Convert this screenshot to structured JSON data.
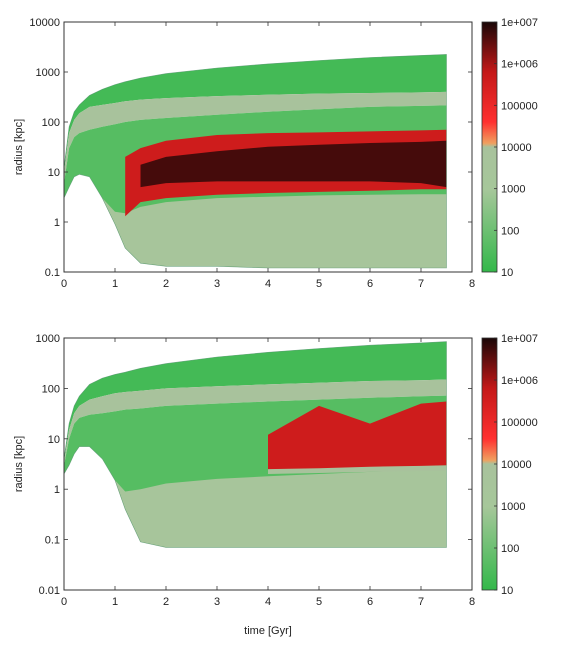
{
  "chart_data": [
    {
      "type": "heatmap",
      "id": "top",
      "xlabel": "",
      "ylabel": "radius [kpc]",
      "x_ticks": [
        "0",
        "1",
        "2",
        "3",
        "4",
        "5",
        "6",
        "7",
        "8"
      ],
      "xlim": [
        0,
        8
      ],
      "y_scale": "log",
      "ylim": [
        0.1,
        10000
      ],
      "y_ticks": [
        {
          "value": 0.1,
          "label": "0.1"
        },
        {
          "value": 1,
          "label": "1"
        },
        {
          "value": 10,
          "label": "10"
        },
        {
          "value": 100,
          "label": "100"
        },
        {
          "value": 1000,
          "label": "1000"
        },
        {
          "value": 10000,
          "label": "10000"
        }
      ],
      "colorbar": {
        "scale": "log",
        "range": [
          10,
          10000000
        ],
        "ticks": [
          {
            "value": 10,
            "label": "10"
          },
          {
            "value": 100,
            "label": "100"
          },
          {
            "value": 1000,
            "label": "1000"
          },
          {
            "value": 10000,
            "label": "10000"
          },
          {
            "value": 100000,
            "label": "100000"
          },
          {
            "value": 1000000,
            "label": "1e+006"
          },
          {
            "value": 10000000,
            "label": "1e+007"
          }
        ]
      },
      "envelope": {
        "t": [
          0.0,
          0.1,
          0.2,
          0.3,
          0.5,
          0.75,
          1.0,
          1.2,
          1.5,
          2.0,
          3.0,
          4.0,
          5.0,
          6.0,
          7.0,
          7.5
        ],
        "outer": [
          12,
          80,
          160,
          220,
          340,
          450,
          560,
          640,
          760,
          930,
          1200,
          1450,
          1700,
          1950,
          2150,
          2250
        ],
        "inner": [
          3,
          5,
          8,
          9,
          8,
          3,
          0.9,
          0.3,
          0.15,
          0.13,
          0.13,
          0.12,
          0.12,
          0.12,
          0.12,
          0.12
        ]
      },
      "layers": [
        {
          "temp": 20,
          "r_hi": [
            12,
            80,
            160,
            220,
            340,
            450,
            560,
            640,
            760,
            930,
            1200,
            1450,
            1700,
            1950,
            2150,
            2250
          ],
          "r_lo": [
            10,
            60,
            110,
            150,
            200,
            220,
            240,
            260,
            280,
            300,
            330,
            350,
            370,
            380,
            390,
            400
          ]
        },
        {
          "temp": 8000,
          "r_hi": [
            10,
            60,
            110,
            150,
            200,
            220,
            240,
            260,
            280,
            300,
            330,
            350,
            370,
            380,
            390,
            400
          ],
          "r_lo": [
            6,
            30,
            50,
            60,
            70,
            80,
            90,
            100,
            110,
            120,
            140,
            160,
            180,
            200,
            210,
            215
          ]
        },
        {
          "temp": 40,
          "r_hi": [
            6,
            30,
            50,
            60,
            70,
            80,
            90,
            100,
            110,
            120,
            140,
            160,
            180,
            200,
            210,
            215
          ],
          "r_lo": [
            3,
            5,
            8,
            9,
            8,
            3,
            0.9,
            0.3,
            0.15,
            0.13,
            0.13,
            0.12,
            0.12,
            0.12,
            0.12,
            0.12
          ]
        },
        {
          "temp": 2000,
          "r_hi": [
            3,
            5,
            8,
            9,
            8,
            3,
            1.6,
            1.5,
            2.0,
            2.5,
            3.0,
            3.2,
            3.4,
            3.5,
            3.6,
            3.6
          ],
          "r_lo": [
            3,
            5,
            8,
            9,
            8,
            3,
            0.9,
            0.3,
            0.15,
            0.13,
            0.13,
            0.12,
            0.12,
            0.12,
            0.12,
            0.12
          ]
        },
        {
          "temp": 400000,
          "r_hi": [
            null,
            null,
            null,
            null,
            null,
            null,
            null,
            20,
            30,
            42,
            55,
            60,
            62,
            65,
            68,
            70
          ],
          "r_lo": [
            null,
            null,
            null,
            null,
            null,
            null,
            null,
            1.3,
            2.5,
            3.0,
            3.5,
            3.8,
            4.0,
            4.2,
            4.5,
            4.5
          ]
        },
        {
          "temp": 5000000,
          "r_hi": [
            null,
            null,
            null,
            null,
            null,
            null,
            null,
            null,
            14,
            20,
            26,
            32,
            35,
            38,
            40,
            42
          ],
          "r_lo": [
            null,
            null,
            null,
            null,
            null,
            null,
            null,
            null,
            5,
            6,
            6.5,
            6.5,
            6.5,
            6.5,
            6.0,
            5.0
          ]
        }
      ]
    },
    {
      "type": "heatmap",
      "id": "bottom",
      "xlabel": "time [Gyr]",
      "ylabel": "radius [kpc]",
      "x_ticks": [
        "0",
        "1",
        "2",
        "3",
        "4",
        "5",
        "6",
        "7",
        "8"
      ],
      "xlim": [
        0,
        8
      ],
      "y_scale": "log",
      "ylim": [
        0.01,
        1000
      ],
      "y_ticks": [
        {
          "value": 0.01,
          "label": "0.01"
        },
        {
          "value": 0.1,
          "label": "0.1"
        },
        {
          "value": 1,
          "label": "1"
        },
        {
          "value": 10,
          "label": "10"
        },
        {
          "value": 100,
          "label": "100"
        },
        {
          "value": 1000,
          "label": "1000"
        }
      ],
      "colorbar": {
        "scale": "log",
        "range": [
          10,
          10000000
        ],
        "ticks": [
          {
            "value": 10,
            "label": "10"
          },
          {
            "value": 100,
            "label": "100"
          },
          {
            "value": 1000,
            "label": "1000"
          },
          {
            "value": 10000,
            "label": "10000"
          },
          {
            "value": 100000,
            "label": "100000"
          },
          {
            "value": 1000000,
            "label": "1e+006"
          },
          {
            "value": 10000000,
            "label": "1e+007"
          }
        ]
      },
      "envelope": {
        "t": [
          0.0,
          0.1,
          0.2,
          0.3,
          0.5,
          0.75,
          1.0,
          1.2,
          1.5,
          2.0,
          3.0,
          4.0,
          5.0,
          6.0,
          7.0,
          7.5
        ],
        "outer": [
          4,
          20,
          45,
          70,
          120,
          160,
          190,
          210,
          250,
          310,
          420,
          520,
          620,
          720,
          800,
          850
        ],
        "inner": [
          2,
          3,
          5,
          7,
          7,
          4,
          1.5,
          0.4,
          0.09,
          0.07,
          0.07,
          0.07,
          0.07,
          0.07,
          0.07,
          0.07
        ]
      },
      "layers": [
        {
          "temp": 20,
          "r_hi": [
            4,
            20,
            45,
            70,
            120,
            160,
            190,
            210,
            250,
            310,
            420,
            520,
            620,
            720,
            800,
            850
          ],
          "r_lo": [
            3.5,
            15,
            32,
            45,
            60,
            70,
            80,
            85,
            90,
            100,
            110,
            120,
            130,
            140,
            145,
            150
          ]
        },
        {
          "temp": 8000,
          "r_hi": [
            3.5,
            15,
            32,
            45,
            60,
            70,
            80,
            85,
            90,
            100,
            110,
            120,
            130,
            140,
            145,
            150
          ],
          "r_lo": [
            3,
            10,
            20,
            26,
            30,
            32,
            35,
            38,
            40,
            45,
            50,
            55,
            60,
            65,
            70,
            72
          ]
        },
        {
          "temp": 40,
          "r_hi": [
            3,
            10,
            20,
            26,
            30,
            32,
            35,
            38,
            40,
            45,
            50,
            55,
            60,
            65,
            70,
            72
          ],
          "r_lo": [
            2,
            3,
            5,
            7,
            7,
            4,
            1.5,
            0.4,
            0.09,
            0.07,
            0.07,
            0.07,
            0.07,
            0.07,
            0.07,
            0.07
          ]
        },
        {
          "temp": 2000,
          "r_hi": [
            2,
            3,
            5,
            7,
            7,
            4,
            1.5,
            0.9,
            1.0,
            1.3,
            1.6,
            1.8,
            2.0,
            2.2,
            2.4,
            2.5
          ],
          "r_lo": [
            2,
            3,
            5,
            7,
            7,
            4,
            1.5,
            0.4,
            0.09,
            0.07,
            0.07,
            0.07,
            0.07,
            0.07,
            0.07,
            0.07
          ]
        },
        {
          "temp": 8000,
          "r_hi": [
            null,
            null,
            null,
            null,
            null,
            null,
            null,
            null,
            null,
            null,
            null,
            2.5,
            2.7,
            2.9,
            3.0,
            3.0
          ],
          "r_lo": [
            null,
            null,
            null,
            null,
            null,
            null,
            null,
            null,
            null,
            null,
            null,
            2.0,
            2.1,
            2.2,
            2.3,
            2.3
          ]
        },
        {
          "temp": 400000,
          "r_hi": [
            null,
            null,
            null,
            null,
            null,
            null,
            null,
            null,
            null,
            null,
            null,
            12,
            45,
            20,
            50,
            55
          ],
          "r_lo": [
            null,
            null,
            null,
            null,
            null,
            null,
            null,
            null,
            null,
            null,
            null,
            2.5,
            2.6,
            2.8,
            2.9,
            3.0
          ]
        }
      ]
    }
  ]
}
